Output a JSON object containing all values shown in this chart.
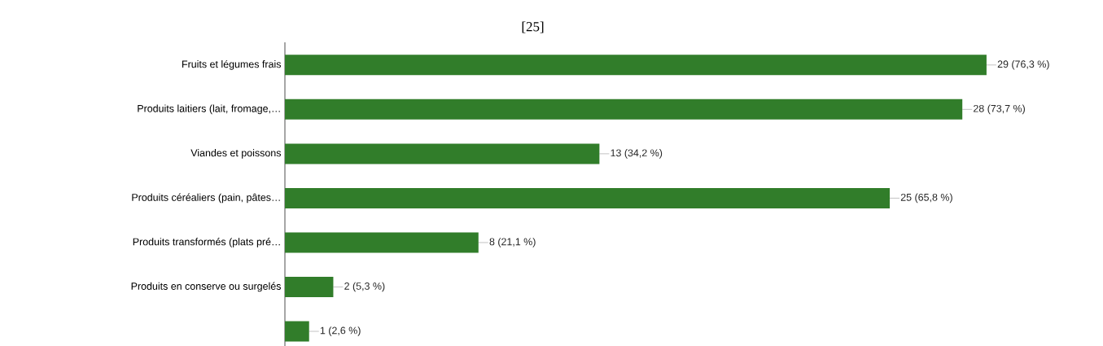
{
  "chart_data": {
    "type": "bar",
    "orientation": "horizontal",
    "title": "[25]",
    "categories": [
      "Fruits et légumes frais",
      "Produits laitiers (lait, fromage,…",
      "Viandes et poissons",
      "Produits céréaliers (pain, pâtes…",
      "Produits transformés (plats pré…",
      "Produits en conserve ou surgelés",
      null
    ],
    "values": [
      29,
      28,
      13,
      25,
      8,
      2,
      1
    ],
    "value_labels": [
      "29 (76,3 %)",
      "28 (73,7 %)",
      "13 (34,2 %)",
      "25 (65,8 %)",
      "8 (21,1 %)",
      "2 (5,3 %)",
      "1 (2,6 %)"
    ],
    "color": "#317d2a",
    "tick_labels": "y"
  }
}
